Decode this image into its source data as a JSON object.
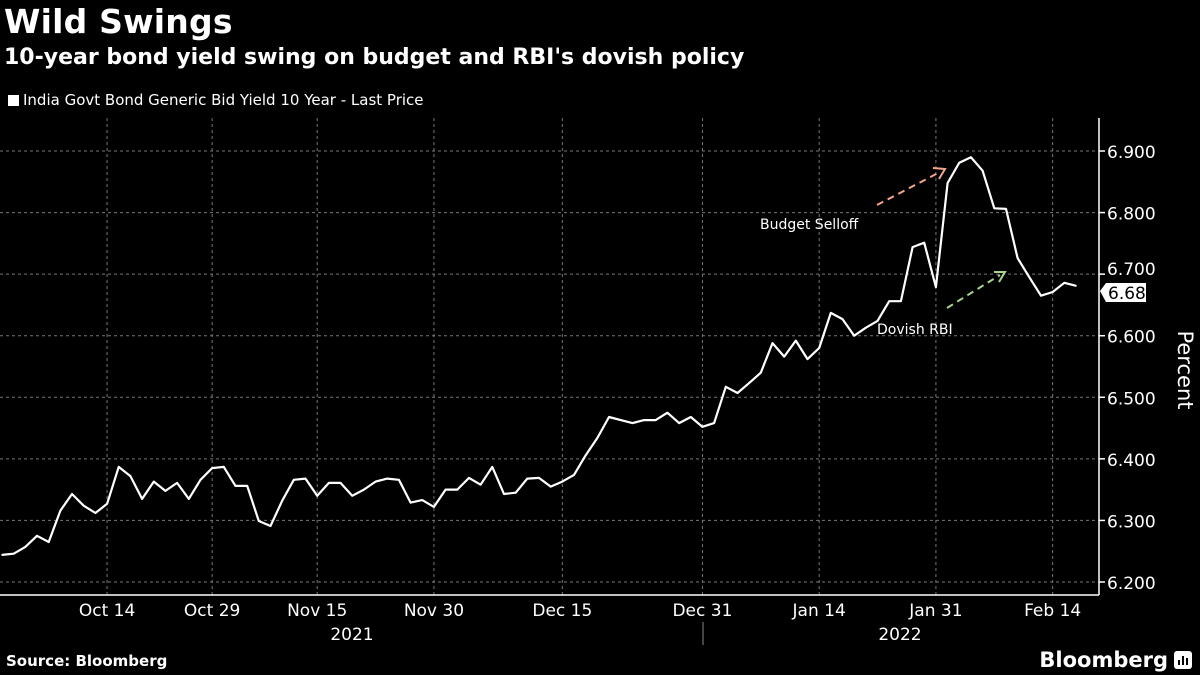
{
  "header": {
    "title": "Wild Swings",
    "subtitle": "10-year bond yield swing on budget and RBI's dovish policy"
  },
  "footer": {
    "source": "Source: Bloomberg",
    "logo": "Bloomberg"
  },
  "chart_data": {
    "type": "line",
    "title": "Wild Swings",
    "subtitle": "10-year bond yield swing on budget and RBI's dovish policy",
    "xlabel": "",
    "ylabel": "Percent",
    "ylim": [
      6.2,
      6.9
    ],
    "yticks": [
      "6.200",
      "6.300",
      "6.400",
      "6.500",
      "6.600",
      "6.700",
      "6.800",
      "6.900"
    ],
    "xticks": [
      {
        "label": "Oct 14",
        "date": "2021-10-14"
      },
      {
        "label": "Oct 29",
        "date": "2021-10-29"
      },
      {
        "label": "Nov 15",
        "date": "2021-11-15"
      },
      {
        "label": "Nov 30",
        "date": "2021-11-30"
      },
      {
        "label": "Dec 15",
        "date": "2021-12-15"
      },
      {
        "label": "Dec 31",
        "date": "2021-12-31"
      },
      {
        "label": "Jan 14",
        "date": "2022-01-14"
      },
      {
        "label": "Jan 31",
        "date": "2022-01-31"
      },
      {
        "label": "Feb 14",
        "date": "2022-02-14"
      }
    ],
    "years": [
      "2021",
      "2022"
    ],
    "grid": true,
    "legend_position": "top-left",
    "line_color": "#ffffff",
    "last_value_label": "6.681",
    "annotations": [
      {
        "text": "Budget Selloff",
        "arrow_color": "#f4a58a"
      },
      {
        "text": "Dovish RBI",
        "arrow_color": "#a8d58a"
      }
    ],
    "series": [
      {
        "name": "India Govt Bond Generic Bid Yield 10 Year - Last Price",
        "x": [
          "2021-10-01",
          "2021-10-04",
          "2021-10-05",
          "2021-10-06",
          "2021-10-07",
          "2021-10-08",
          "2021-10-11",
          "2021-10-12",
          "2021-10-13",
          "2021-10-14",
          "2021-10-18",
          "2021-10-20",
          "2021-10-21",
          "2021-10-22",
          "2021-10-25",
          "2021-10-26",
          "2021-10-27",
          "2021-10-28",
          "2021-10-29",
          "2021-11-01",
          "2021-11-02",
          "2021-11-03",
          "2021-11-08",
          "2021-11-09",
          "2021-11-10",
          "2021-11-11",
          "2021-11-12",
          "2021-11-15",
          "2021-11-16",
          "2021-11-17",
          "2021-11-18",
          "2021-11-22",
          "2021-11-23",
          "2021-11-24",
          "2021-11-25",
          "2021-11-26",
          "2021-11-29",
          "2021-11-30",
          "2021-12-01",
          "2021-12-02",
          "2021-12-03",
          "2021-12-06",
          "2021-12-07",
          "2021-12-08",
          "2021-12-09",
          "2021-12-10",
          "2021-12-13",
          "2021-12-14",
          "2021-12-15",
          "2021-12-16",
          "2021-12-17",
          "2021-12-20",
          "2021-12-21",
          "2021-12-22",
          "2021-12-23",
          "2021-12-24",
          "2021-12-27",
          "2021-12-28",
          "2021-12-29",
          "2021-12-30",
          "2021-12-31",
          "2022-01-03",
          "2022-01-04",
          "2022-01-05",
          "2022-01-06",
          "2022-01-07",
          "2022-01-10",
          "2022-01-11",
          "2022-01-12",
          "2022-01-13",
          "2022-01-14",
          "2022-01-17",
          "2022-01-18",
          "2022-01-19",
          "2022-01-20",
          "2022-01-21",
          "2022-01-24",
          "2022-01-25",
          "2022-01-27",
          "2022-01-28",
          "2022-01-31",
          "2022-02-01",
          "2022-02-02",
          "2022-02-03",
          "2022-02-04",
          "2022-02-07",
          "2022-02-08",
          "2022-02-09",
          "2022-02-10",
          "2022-02-11",
          "2022-02-14",
          "2022-02-15",
          "2022-02-16"
        ],
        "values": [
          6.244,
          6.246,
          6.257,
          6.275,
          6.265,
          6.316,
          6.343,
          6.324,
          6.312,
          6.327,
          6.387,
          6.372,
          6.335,
          6.363,
          6.348,
          6.361,
          6.335,
          6.366,
          6.385,
          6.387,
          6.356,
          6.356,
          6.299,
          6.291,
          6.332,
          6.366,
          6.368,
          6.34,
          6.361,
          6.361,
          6.34,
          6.35,
          6.363,
          6.368,
          6.366,
          6.329,
          6.333,
          6.322,
          6.35,
          6.35,
          6.369,
          6.358,
          6.387,
          6.343,
          6.345,
          6.368,
          6.369,
          6.355,
          6.363,
          6.374,
          6.406,
          6.434,
          6.468,
          6.463,
          6.458,
          6.463,
          6.463,
          6.475,
          6.458,
          6.468,
          6.452,
          6.458,
          6.517,
          6.507,
          6.523,
          6.54,
          6.588,
          6.566,
          6.592,
          6.562,
          6.58,
          6.637,
          6.627,
          6.6,
          6.613,
          6.624,
          6.656,
          6.656,
          6.744,
          6.751,
          6.679,
          6.848,
          6.881,
          6.89,
          6.868,
          6.807,
          6.806,
          6.726,
          6.695,
          6.665,
          6.671,
          6.686,
          6.681
        ]
      }
    ]
  }
}
